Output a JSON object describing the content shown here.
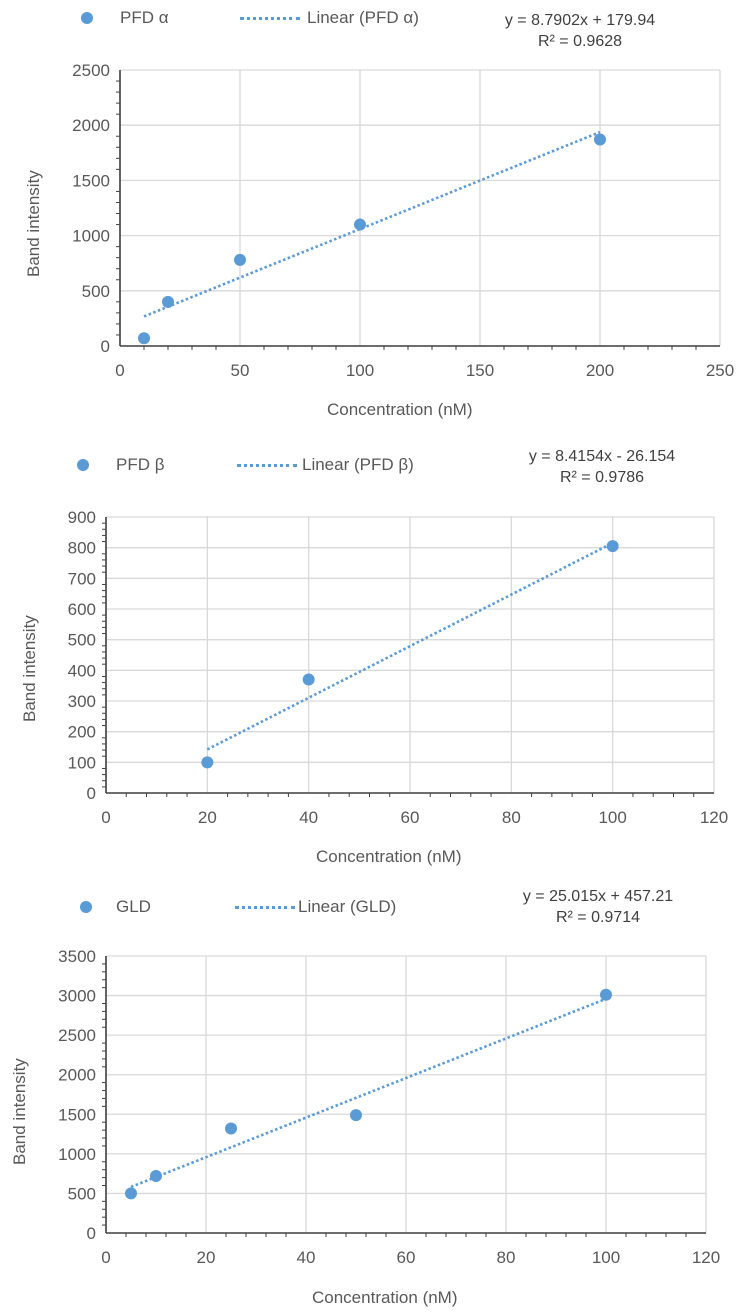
{
  "chart_data": [
    {
      "type": "scatter",
      "series": [
        {
          "name": "PFD α",
          "x": [
            10,
            20,
            50,
            100,
            200
          ],
          "y": [
            70,
            400,
            780,
            1100,
            1870
          ]
        }
      ],
      "trendline": {
        "label": "Linear (PFD α)",
        "slope": 8.7902,
        "intercept": 179.94,
        "equation": "y = 8.7902x + 179.94",
        "r2": "R² = 0.9628"
      },
      "xlabel": "Concentration (nM)",
      "ylabel": "Band intensity",
      "xlim": [
        0,
        250
      ],
      "ylim": [
        0,
        2500
      ],
      "xticks": [
        "0",
        "50",
        "100",
        "150",
        "200",
        "250"
      ],
      "yticks": [
        "0",
        "500",
        "1000",
        "1500",
        "2000",
        "2500"
      ],
      "grid": true,
      "legend": "top",
      "marker_color": "#5B9BD5"
    },
    {
      "type": "scatter",
      "series": [
        {
          "name": "PFD β",
          "x": [
            20,
            40,
            100
          ],
          "y": [
            100,
            370,
            805
          ]
        }
      ],
      "trendline": {
        "label": "Linear (PFD β)",
        "slope": 8.4154,
        "intercept": -26.154,
        "equation": "y = 8.4154x - 26.154",
        "r2": "R² = 0.9786"
      },
      "xlabel": "Concentration (nM)",
      "ylabel": "Band intensity",
      "xlim": [
        0,
        120
      ],
      "ylim": [
        0,
        900
      ],
      "xticks": [
        "0",
        "20",
        "40",
        "60",
        "80",
        "100",
        "120"
      ],
      "yticks": [
        "0",
        "100",
        "200",
        "300",
        "400",
        "500",
        "600",
        "700",
        "800",
        "900"
      ],
      "grid": true,
      "legend": "top",
      "marker_color": "#5B9BD5"
    },
    {
      "type": "scatter",
      "series": [
        {
          "name": "GLD",
          "x": [
            5,
            10,
            25,
            50,
            100
          ],
          "y": [
            500,
            720,
            1320,
            1490,
            3010
          ]
        }
      ],
      "trendline": {
        "label": "Linear (GLD)",
        "slope": 25.015,
        "intercept": 457.21,
        "equation": "y = 25.015x + 457.21",
        "r2": "R² = 0.9714"
      },
      "xlabel": "Concentration (nM)",
      "ylabel": "Band intensity",
      "xlim": [
        0,
        120
      ],
      "ylim": [
        0,
        3500
      ],
      "xticks": [
        "0",
        "20",
        "40",
        "60",
        "80",
        "100",
        "120"
      ],
      "yticks": [
        "0",
        "500",
        "1000",
        "1500",
        "2000",
        "2500",
        "3000",
        "3500"
      ],
      "grid": true,
      "legend": "top",
      "marker_color": "#5B9BD5"
    }
  ]
}
